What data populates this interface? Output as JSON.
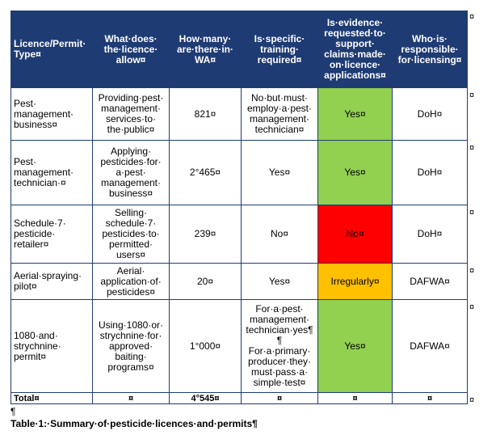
{
  "table": {
    "header": {
      "cells": [
        "Licence/Permit·\nType¤",
        "What·does·\nthe·licence·\nallow¤",
        "How·many·\nare·there·in·\nWA¤",
        "Is·specific·\ntraining·\nrequired¤",
        "Is·evidence·\nrequested·to·\nsupport·\nclaims·made·\non·licence·\napplications¤",
        "Who·is·\nresponsible·\nfor·licensing¤"
      ],
      "end": "¤"
    },
    "rows": [
      {
        "cells": [
          "Pest·\nmanagement·\nbusiness¤",
          "Providing·pest·\nmanagement·\nservices·to·\nthe·public¤",
          "821¤",
          "No·but·must·\nemploy·a·pest·\nmanagement·\ntechnician¤",
          "Yes¤",
          "DoH¤"
        ],
        "evidence_color": "#92d050",
        "end": "¤"
      },
      {
        "cells": [
          "Pest·\nmanagement·\ntechnician·¤",
          "Applying·\npesticides·for·\na·pest·\nmanagement·\nbusiness¤",
          "2°465¤",
          "Yes¤",
          "Yes¤",
          "DoH¤"
        ],
        "evidence_color": "#92d050",
        "end": "¤"
      },
      {
        "cells": [
          "Schedule·7·\npesticide·\nretailer¤",
          "Selling·\nschedule·7·\npesticides·to·\npermitted·\nusers¤",
          "239¤",
          "No¤",
          "No¤",
          "DoH¤"
        ],
        "evidence_color": "#ff0000",
        "end": "¤"
      },
      {
        "cells": [
          "Aerial·spraying·\npilot¤",
          "Aerial·\napplication·of·\npesticides¤",
          "20¤",
          "Yes¤",
          "Irregularly¤",
          "DAFWA¤"
        ],
        "evidence_color": "#ffc000",
        "end": "¤"
      },
      {
        "cells": [
          "1080·and·\nstrychnine·\npermit¤",
          "Using·1080·or·\nstrychnine·for·\napproved·\nbaiting·\nprograms¤",
          "1°000¤",
          "For·a·pest·\nmanagement·\ntechnician·yes¶\n¶\nFor·a·primary·\nproducer·they·\nmust·pass·a·\nsimple·test¤",
          "Yes¤",
          "DAFWA¤"
        ],
        "evidence_color": "#92d050",
        "end": "¤"
      },
      {
        "cells": [
          "Total¤",
          "¤",
          "4°545¤",
          "¤",
          "¤",
          "¤"
        ],
        "end": "¤"
      }
    ]
  },
  "pilcrow": "¶",
  "caption": "Table·1:·Summary·of·pesticide·licences·and·permits¶"
}
